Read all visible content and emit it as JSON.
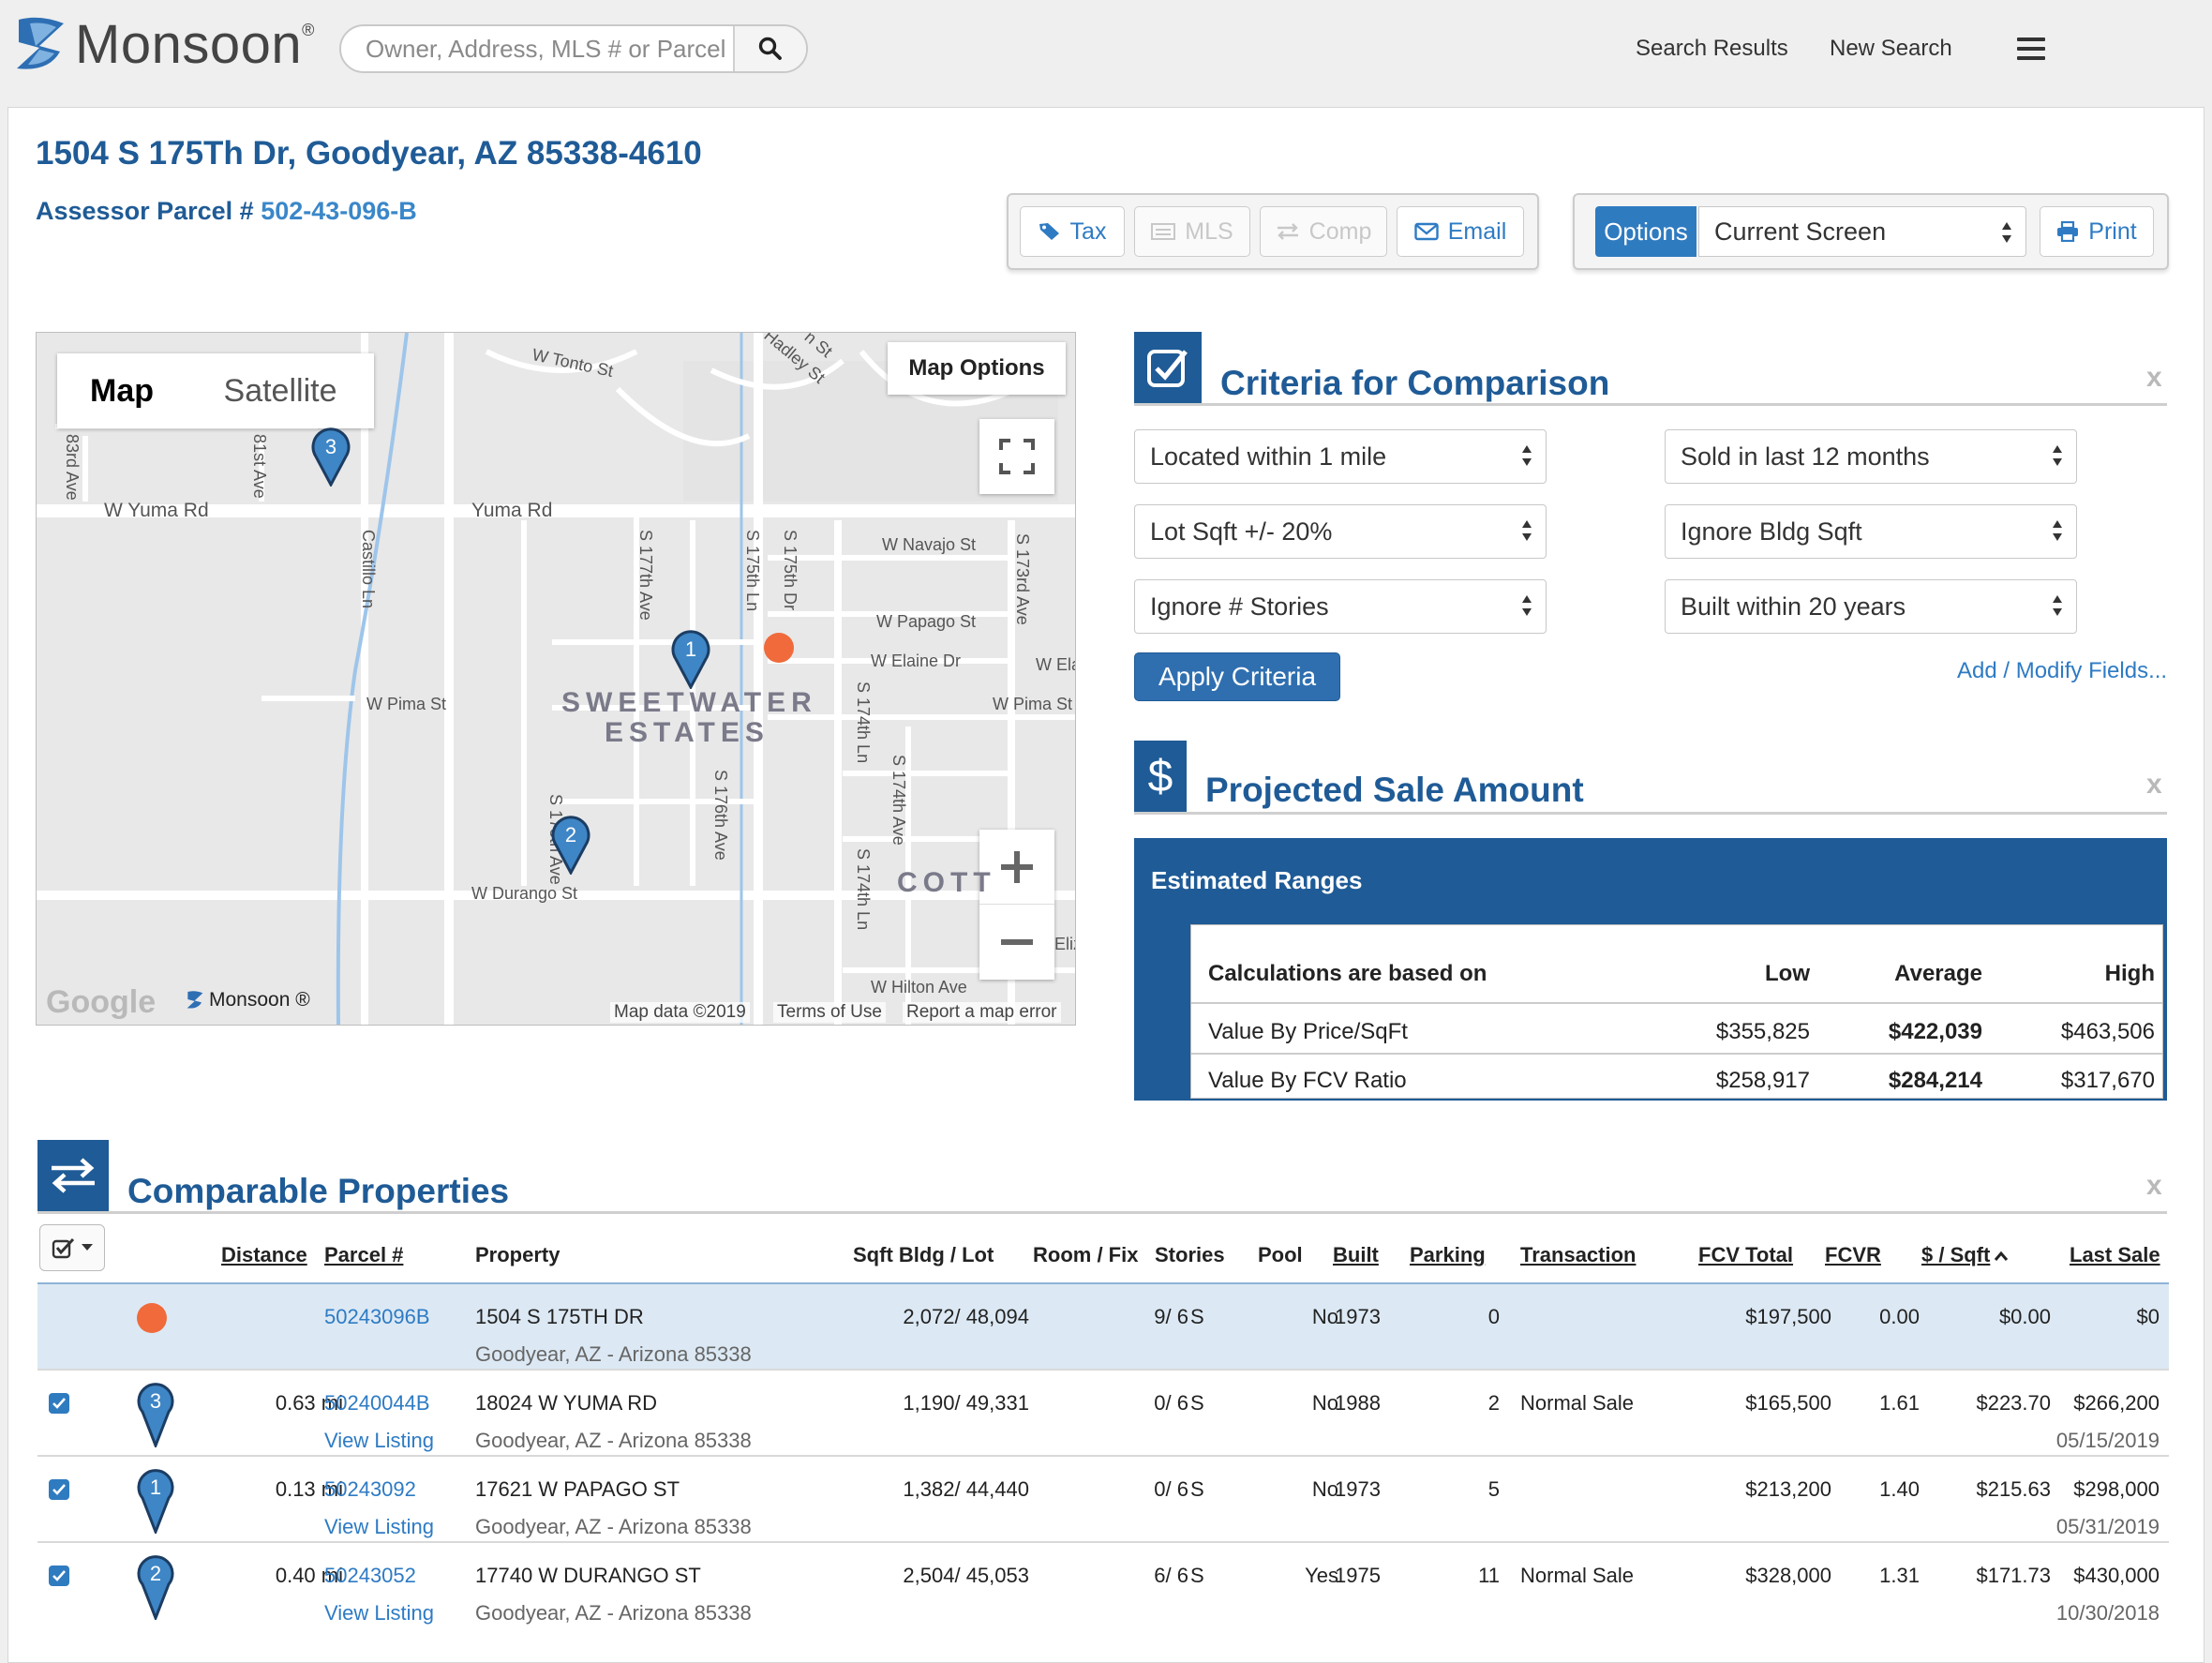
{
  "header": {
    "app_name": "Monsoon",
    "app_reg": "®",
    "search_placeholder": "Owner, Address, MLS # or Parcel",
    "nav_search_results": "Search Results",
    "nav_new_search": "New Search"
  },
  "property": {
    "address": "1504 S 175Th Dr, Goodyear, AZ 85338-4610",
    "parcel_label": "Assessor Parcel #",
    "parcel_value": "502-43-096-B"
  },
  "actions": {
    "tax": "Tax",
    "mls": "MLS",
    "comp": "Comp",
    "email": "Email",
    "options": "Options",
    "screen_select": "Current Screen",
    "print": "Print"
  },
  "map": {
    "tab_map": "Map",
    "tab_satellite": "Satellite",
    "options": "Map Options",
    "labels": {
      "w_tonto": "W Tonto St",
      "w_hadley": "W Hadley St",
      "n_st": "n St",
      "ave83": "83rd Ave",
      "ave81": "81st Ave",
      "w_yuma": "W Yuma Rd",
      "yuma": "Yuma Rd",
      "castillo": "Castillo Ln",
      "s177": "S 177th Ave",
      "s175ln": "S 175th Ln",
      "s175dr": "S 175th Dr",
      "w_navajo": "W Navajo St",
      "s173": "S 173rd Ave",
      "w_papago": "W Papago St",
      "w_elaine": "W Elaine Dr",
      "w_ela": "W Ela",
      "w_pima_l": "W Pima St",
      "w_pima_r": "W Pima St",
      "sweetwater": "SWEETWATER",
      "estates": "ESTATES",
      "s174ln": "S 174th Ln",
      "s174ave": "S 174th Ave",
      "s176": "S 176th Ave",
      "s178": "S 178th Ave",
      "s174ln2": "S 174th Ln",
      "w_durango": "W Durango St",
      "cott": "COTT",
      "w_hilton": "W Hilton Ave",
      "eliz": "Eliz"
    },
    "markers": [
      "3",
      "1",
      "2"
    ],
    "google": "Google",
    "monsoon": "Monsoon ®",
    "map_data": "Map data ©2019",
    "terms": "Terms of Use",
    "report": "Report a map error"
  },
  "criteria": {
    "title": "Criteria for Comparison",
    "close": "x",
    "selects": [
      "Located within 1 mile",
      "Sold in last 12 months",
      "Lot Sqft +/- 20%",
      "Ignore Bldg Sqft",
      "Ignore # Stories",
      "Built within 20 years"
    ],
    "apply": "Apply Criteria",
    "modify": "Add / Modify Fields..."
  },
  "projected": {
    "title": "Projected Sale Amount",
    "close": "x",
    "ranges_title": "Estimated Ranges",
    "col_basis": "Calculations are based on",
    "col_low": "Low",
    "col_avg": "Average",
    "col_high": "High",
    "rows": [
      {
        "label": "Value By Price/SqFt",
        "low": "$355,825",
        "avg": "$422,039",
        "high": "$463,506"
      },
      {
        "label": "Value By FCV Ratio",
        "low": "$258,917",
        "avg": "$284,214",
        "high": "$317,670"
      }
    ]
  },
  "comparables": {
    "title": "Comparable Properties",
    "close": "x",
    "headers": {
      "distance": "Distance",
      "parcel": "Parcel #",
      "property": "Property",
      "sqft": "Sqft Bldg / Lot",
      "room": "Room / Fix",
      "stories": "Stories",
      "pool": "Pool",
      "built": "Built",
      "parking": "Parking",
      "transaction": "Transaction",
      "fcv_total": "FCV Total",
      "fcvr": "FCVR",
      "dollar_sqft": "$ / Sqft",
      "last_sale": "Last Sale"
    },
    "subject": {
      "parcel": "50243096B",
      "street": "1504 S 175TH DR",
      "city": "Goodyear, AZ - Arizona  85338",
      "sqft": "2,072/ 48,094",
      "room": "9/ 6",
      "stories": "S",
      "pool": "No",
      "built": "1973",
      "parking": "0",
      "transaction": "",
      "fcv_total": "$197,500",
      "fcvr": "0.00",
      "dollar_sqft": "$0.00",
      "last_sale": "$0",
      "last_sale_date": ""
    },
    "rows": [
      {
        "marker": "3",
        "distance": "0.63 mi",
        "parcel": "50240044B",
        "view": "View Listing",
        "street": "18024 W YUMA RD",
        "city": "Goodyear, AZ - Arizona  85338",
        "sqft": "1,190/ 49,331",
        "room": "0/ 6",
        "stories": "S",
        "pool": "No",
        "built": "1988",
        "parking": "2",
        "transaction": "Normal Sale",
        "fcv_total": "$165,500",
        "fcvr": "1.61",
        "dollar_sqft": "$223.70",
        "last_sale": "$266,200",
        "last_sale_date": "05/15/2019"
      },
      {
        "marker": "1",
        "distance": "0.13 mi",
        "parcel": "50243092",
        "view": "View Listing",
        "street": "17621 W PAPAGO ST",
        "city": "Goodyear, AZ - Arizona  85338",
        "sqft": "1,382/ 44,440",
        "room": "0/ 6",
        "stories": "S",
        "pool": "No",
        "built": "1973",
        "parking": "5",
        "transaction": "",
        "fcv_total": "$213,200",
        "fcvr": "1.40",
        "dollar_sqft": "$215.63",
        "last_sale": "$298,000",
        "last_sale_date": "05/31/2019"
      },
      {
        "marker": "2",
        "distance": "0.40 mi",
        "parcel": "50243052",
        "view": "View Listing",
        "street": "17740 W DURANGO ST",
        "city": "Goodyear, AZ - Arizona  85338",
        "sqft": "2,504/ 45,053",
        "room": "6/ 6",
        "stories": "S",
        "pool": "Yes",
        "built": "1975",
        "parking": "11",
        "transaction": "Normal Sale",
        "fcv_total": "$328,000",
        "fcvr": "1.31",
        "dollar_sqft": "$171.73",
        "last_sale": "$430,000",
        "last_sale_date": "10/30/2018"
      }
    ]
  },
  "colors": {
    "brand_blue": "#1f5b96",
    "link_blue": "#2e7bc4",
    "subject_row": "#dce9f4",
    "subject_dot": "#f06a3b"
  }
}
